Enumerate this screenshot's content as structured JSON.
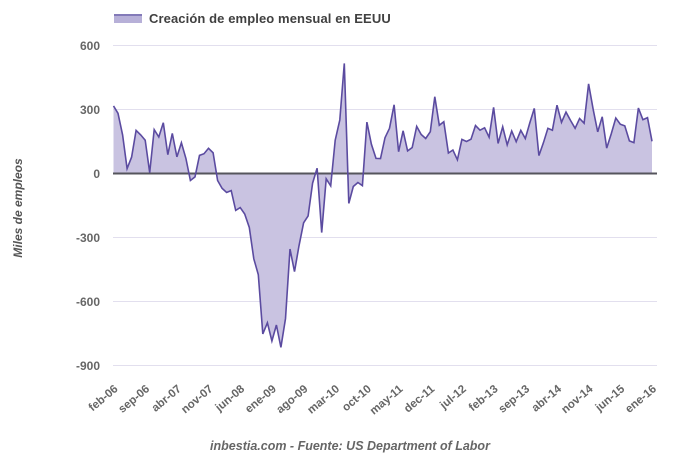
{
  "legend": {
    "label": "Creación de empleo mensual en EEUU"
  },
  "y_axis": {
    "title": "Miles de empleos",
    "ticks": [
      600,
      300,
      0,
      -300,
      -600,
      -900
    ]
  },
  "footer": {
    "text": "inbestia.com - Fuente: US Department of Labor"
  },
  "colors": {
    "area_fill": "#c9c3e1",
    "line": "#5b4ba0",
    "grid": "#e2dfee",
    "zero_line": "#55555c",
    "tick_text": "#666666",
    "title_text": "#404040"
  },
  "chart_data": {
    "type": "area",
    "title": "Creación de empleo mensual en EEUU",
    "xlabel": "",
    "ylabel": "Miles de empleos",
    "ylim": [
      -900,
      600
    ],
    "grid": true,
    "legend_position": "top",
    "baseline": 0,
    "x_tick_step": 7,
    "x_tick_labels": [
      "feb-06",
      "sep-06",
      "abr-07",
      "nov-07",
      "jun-08",
      "ene-09",
      "ago-09",
      "mar-10",
      "oct-10",
      "may-11",
      "dec-11",
      "jul-12",
      "feb-13",
      "sep-13",
      "abr-14",
      "nov-14",
      "jun-15",
      "ene-16"
    ],
    "categories": [
      "feb-06",
      "mar-06",
      "abr-06",
      "may-06",
      "jun-06",
      "jul-06",
      "ago-06",
      "sep-06",
      "oct-06",
      "nov-06",
      "dec-06",
      "ene-07",
      "feb-07",
      "mar-07",
      "abr-07",
      "may-07",
      "jun-07",
      "jul-07",
      "ago-07",
      "sep-07",
      "oct-07",
      "nov-07",
      "dec-07",
      "ene-08",
      "feb-08",
      "mar-08",
      "abr-08",
      "may-08",
      "jun-08",
      "jul-08",
      "ago-08",
      "sep-08",
      "oct-08",
      "nov-08",
      "dec-08",
      "ene-09",
      "feb-09",
      "mar-09",
      "abr-09",
      "may-09",
      "jun-09",
      "jul-09",
      "ago-09",
      "sep-09",
      "oct-09",
      "nov-09",
      "dec-09",
      "ene-10",
      "feb-10",
      "mar-10",
      "abr-10",
      "may-10",
      "jun-10",
      "jul-10",
      "ago-10",
      "sep-10",
      "oct-10",
      "nov-10",
      "dec-10",
      "ene-11",
      "feb-11",
      "mar-11",
      "abr-11",
      "may-11",
      "jun-11",
      "jul-11",
      "ago-11",
      "sep-11",
      "oct-11",
      "nov-11",
      "dec-11",
      "ene-12",
      "feb-12",
      "mar-12",
      "abr-12",
      "may-12",
      "jun-12",
      "jul-12",
      "ago-12",
      "sep-12",
      "oct-12",
      "nov-12",
      "dec-12",
      "ene-13",
      "feb-13",
      "mar-13",
      "abr-13",
      "may-13",
      "jun-13",
      "jul-13",
      "ago-13",
      "sep-13",
      "oct-13",
      "nov-13",
      "dec-13",
      "ene-14",
      "feb-14",
      "mar-14",
      "abr-14",
      "may-14",
      "jun-14",
      "jul-14",
      "ago-14",
      "sep-14",
      "oct-14",
      "nov-14",
      "dec-14",
      "ene-15",
      "feb-15",
      "mar-15",
      "abr-15",
      "may-15",
      "jun-15",
      "jul-15",
      "ago-15",
      "sep-15",
      "oct-15",
      "nov-15",
      "dec-15",
      "ene-16"
    ],
    "values": [
      317,
      282,
      181,
      23,
      77,
      202,
      181,
      156,
      4,
      206,
      171,
      238,
      88,
      188,
      78,
      144,
      71,
      -33,
      -16,
      85,
      93,
      118,
      97,
      -33,
      -70,
      -89,
      -80,
      -173,
      -160,
      -190,
      -253,
      -400,
      -474,
      -752,
      -700,
      -785,
      -710,
      -815,
      -680,
      -354,
      -460,
      -339,
      -231,
      -199,
      -45,
      25,
      -277,
      -25,
      -58,
      156,
      251,
      516,
      -140,
      -61,
      -42,
      -57,
      241,
      137,
      71,
      70,
      168,
      212,
      322,
      102,
      200,
      106,
      122,
      221,
      183,
      164,
      196,
      360,
      226,
      243,
      96,
      110,
      64,
      160,
      150,
      161,
      225,
      203,
      214,
      170,
      310,
      141,
      219,
      134,
      199,
      149,
      202,
      164,
      237,
      305,
      84,
      144,
      212,
      203,
      320,
      240,
      288,
      249,
      212,
      258,
      236,
      420,
      300,
      195,
      266,
      119,
      187,
      260,
      231,
      223,
      153,
      145,
      307,
      252,
      262,
      151
    ],
    "source": "inbestia.com - Fuente: US Department of Labor"
  }
}
